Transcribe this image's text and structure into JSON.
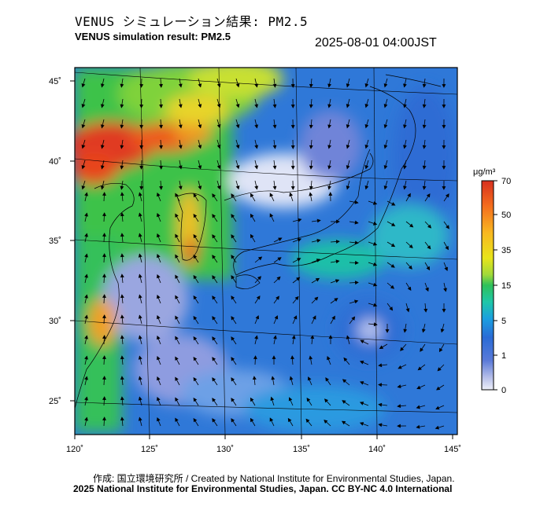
{
  "header": {
    "title_jp": "VENUS シミュレーション結果: PM2.5",
    "title_en": "VENUS simulation result: PM2.5",
    "timestamp": "2025-08-01 04:00JST"
  },
  "map": {
    "lon_ticks": [
      "120˚",
      "125˚",
      "130˚",
      "135˚",
      "140˚",
      "145˚"
    ],
    "lat_ticks": [
      "45˚",
      "40˚",
      "35˚",
      "30˚",
      "25˚"
    ],
    "extent": {
      "lon": [
        120,
        145
      ],
      "lat": [
        23,
        46
      ]
    }
  },
  "colorbar": {
    "unit": "μg/m³",
    "labels": [
      "70",
      "50",
      "35",
      "15",
      "5",
      "1",
      "0"
    ],
    "colors": [
      "#d7301f",
      "#f46d1e",
      "#f8b820",
      "#e8e41a",
      "#a0d93a",
      "#2fc05a",
      "#1fc7a8",
      "#1a9fe0",
      "#2a6bd6",
      "#5a7ad8",
      "#b4bde8",
      "#eef0fa"
    ]
  },
  "footer": {
    "credit_line1": "作成: 国立環境研究所 / Created by National Institute for Environmental Studies, Japan.",
    "credit_line2": "2025 National Institute for Environmental Studies, Japan. CC BY-NC 4.0 International"
  }
}
